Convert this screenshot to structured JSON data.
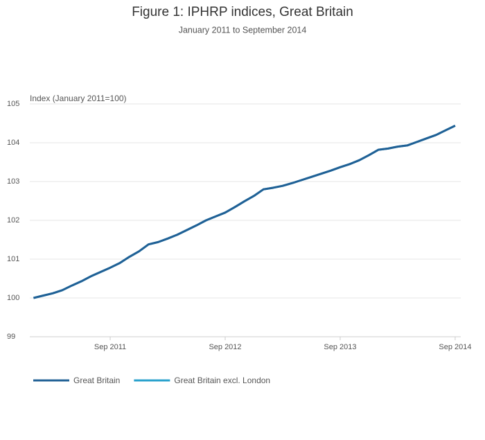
{
  "chart_data": {
    "type": "line",
    "title": "Figure 1: IPHRP indices, Great Britain",
    "subtitle": "January 2011 to September 2014",
    "y_label": "Index (January 2011=100)",
    "categories": [
      null,
      null,
      null,
      null,
      null,
      null,
      null,
      null,
      "Sep 2011",
      null,
      null,
      null,
      null,
      null,
      null,
      null,
      null,
      null,
      null,
      null,
      "Sep 2012",
      null,
      null,
      null,
      null,
      null,
      null,
      null,
      null,
      null,
      null,
      null,
      "Sep 2013",
      null,
      null,
      null,
      null,
      null,
      null,
      null,
      null,
      null,
      null,
      null,
      "Sep 2014"
    ],
    "series": [
      {
        "name": "Great Britain",
        "color": "#206095",
        "values": [
          100.0,
          100.06,
          100.12,
          100.2,
          100.32,
          100.43,
          100.56,
          100.67,
          100.78,
          100.9,
          101.06,
          101.2,
          101.38,
          101.44,
          101.53,
          101.63,
          101.75,
          101.87,
          102.0,
          102.1,
          102.2,
          102.34,
          102.49,
          102.63,
          102.8,
          102.84,
          102.89,
          102.96,
          103.04,
          103.12,
          103.2,
          103.28,
          103.37,
          103.45,
          103.55,
          103.68,
          103.82,
          103.85,
          103.9,
          103.93,
          104.02,
          104.11,
          104.2,
          104.32,
          104.44
        ]
      },
      {
        "name": "Great Britain excl. London",
        "color": "#27a0cc",
        "values": [
          100.0,
          100.06,
          100.12,
          100.2,
          100.32,
          100.43,
          100.56,
          100.67,
          100.78,
          100.9,
          101.06,
          101.2,
          101.38,
          101.44,
          101.53,
          101.63,
          101.75,
          101.87,
          102.0,
          102.1,
          102.2,
          102.34,
          102.49,
          102.63,
          102.8,
          102.84,
          102.89,
          102.96,
          103.04,
          103.12,
          103.2,
          103.28,
          103.37,
          103.45,
          103.55,
          103.68,
          103.82,
          103.85,
          103.9,
          103.93,
          104.02,
          104.11,
          104.2,
          104.32,
          104.44
        ]
      }
    ],
    "ylim": [
      99,
      105
    ],
    "yticks": [
      99,
      100,
      101,
      102,
      103,
      104,
      105
    ],
    "grid": true
  }
}
